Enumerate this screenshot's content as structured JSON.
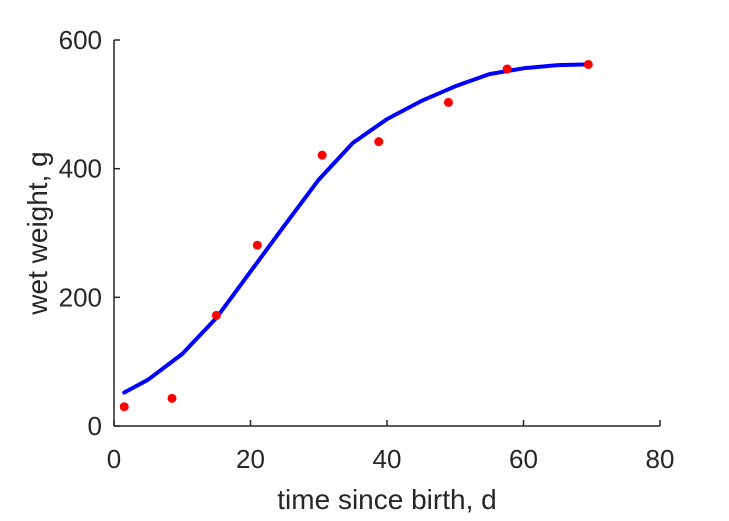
{
  "chart_data": {
    "type": "scatter",
    "title": "",
    "xlabel": "time since birth, d",
    "ylabel": "wet weight, g",
    "xlim": [
      0,
      80
    ],
    "ylim": [
      0,
      600
    ],
    "xticks": [
      0,
      20,
      40,
      60,
      80
    ],
    "yticks": [
      0,
      200,
      400,
      600
    ],
    "xtick_labels": [
      "0",
      "20",
      "40",
      "60",
      "80"
    ],
    "ytick_labels": [
      "0",
      "200",
      "400",
      "600"
    ],
    "grid": false,
    "series": [
      {
        "kind": "scatter",
        "color": "#ff0000",
        "points": [
          [
            1.5,
            30
          ],
          [
            8.5,
            43
          ],
          [
            15,
            172
          ],
          [
            21,
            281
          ],
          [
            30.5,
            421
          ],
          [
            38.8,
            442
          ],
          [
            49,
            503
          ],
          [
            57.6,
            555
          ],
          [
            69.5,
            562
          ]
        ]
      },
      {
        "kind": "line",
        "color": "#0000ff",
        "points": [
          [
            1.5,
            52
          ],
          [
            5,
            72
          ],
          [
            10,
            112
          ],
          [
            15,
            168
          ],
          [
            20,
            240
          ],
          [
            25,
            312
          ],
          [
            30,
            383
          ],
          [
            35,
            440
          ],
          [
            40,
            477
          ],
          [
            45,
            505
          ],
          [
            50,
            528
          ],
          [
            55,
            547
          ],
          [
            60,
            556
          ],
          [
            65,
            561
          ],
          [
            69.5,
            562
          ]
        ]
      }
    ]
  }
}
